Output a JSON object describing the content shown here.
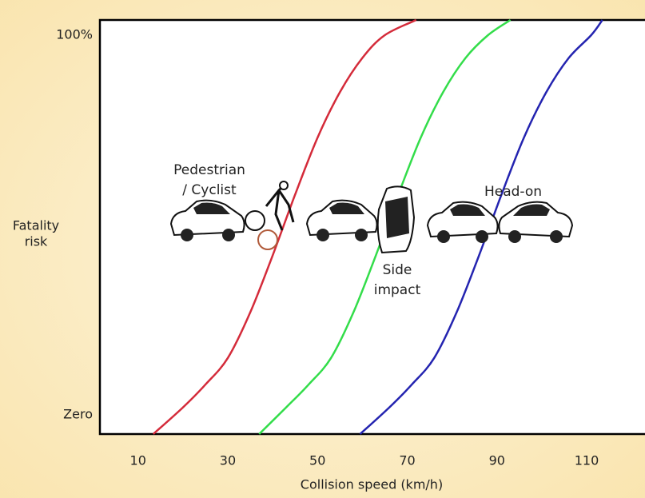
{
  "chart_data": {
    "type": "line",
    "xlabel": "Collision speed (km/h)",
    "ylabel": [
      "Fatality",
      "risk"
    ],
    "xlim": [
      1.5,
      123
    ],
    "xticks": [
      10,
      30,
      50,
      70,
      90,
      110
    ],
    "ylim": [
      -5,
      104
    ],
    "yticks": [
      {
        "value": 0,
        "label": "Zero"
      },
      {
        "value": 100,
        "label": "100%"
      }
    ],
    "series": [
      {
        "color": "#d42b3a",
        "x": [
          13.4,
          20,
          25,
          30,
          35,
          40,
          45,
          50,
          55,
          60,
          65,
          72
        ],
        "values": [
          -5,
          2,
          8,
          15,
          27,
          42,
          58,
          73,
          85,
          94,
          100,
          104
        ]
      },
      {
        "color": "#33dd4a",
        "x": [
          37,
          43,
          48,
          53,
          58,
          63,
          68,
          73,
          78,
          83,
          88,
          93
        ],
        "values": [
          -5,
          2,
          8,
          15,
          27,
          42,
          58,
          73,
          85,
          94,
          100,
          104
        ]
      },
      {
        "color": "#2424b0",
        "x": [
          59.5,
          66,
          71,
          76,
          81,
          86,
          91,
          96,
          101,
          106,
          111,
          113.5
        ],
        "values": [
          -5,
          2,
          8,
          15,
          27,
          42,
          58,
          73,
          85,
          94,
          100,
          104
        ]
      }
    ],
    "annotations": [
      {
        "lines": [
          "Pedestrian",
          "/ Cyclist"
        ]
      },
      {
        "lines": [
          "Side",
          "impact"
        ]
      },
      {
        "lines": [
          "Head-on"
        ]
      }
    ]
  }
}
